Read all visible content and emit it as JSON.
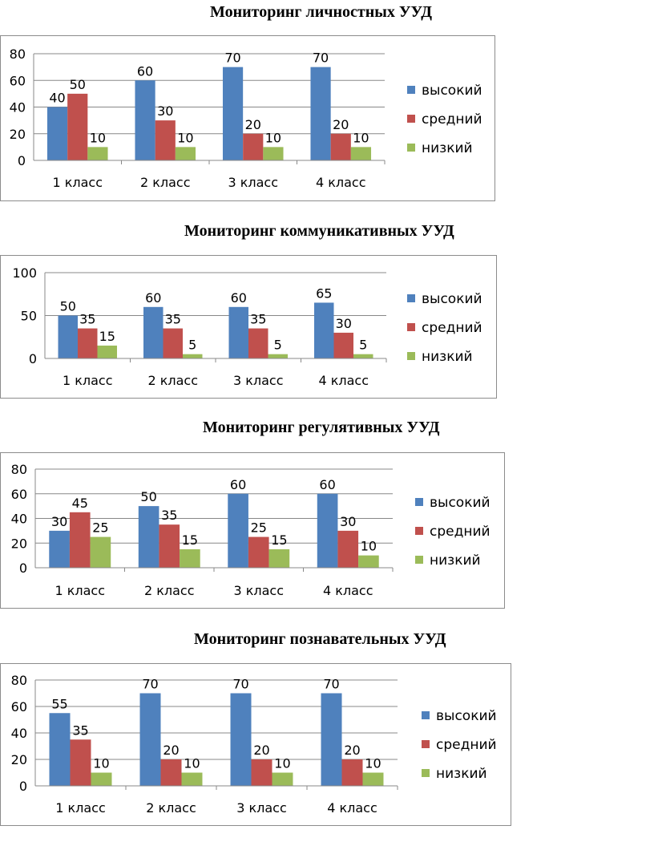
{
  "legend": {
    "high": "высокий",
    "mid": "средний",
    "low": "низкий"
  },
  "colors": {
    "high": "#4f81bd",
    "mid": "#c0504d",
    "low": "#9bbb59",
    "grid": "#888888"
  },
  "chart_data": [
    {
      "type": "bar",
      "title": "Мониторинг личностных УУД",
      "categories": [
        "1 класс",
        "2 класс",
        "3 класс",
        "4 класс"
      ],
      "series": [
        {
          "name": "высокий",
          "values": [
            40,
            60,
            70,
            70
          ]
        },
        {
          "name": "средний",
          "values": [
            50,
            30,
            20,
            20
          ]
        },
        {
          "name": "низкий",
          "values": [
            10,
            10,
            10,
            10
          ]
        }
      ],
      "ylim": [
        0,
        80
      ],
      "yticks": [
        0,
        20,
        40,
        60,
        80
      ],
      "grid": true,
      "legend_position": "right"
    },
    {
      "type": "bar",
      "title": "Мониторинг коммуникативных УУД",
      "categories": [
        "1 класс",
        "2 класс",
        "3 класс",
        "4 класс"
      ],
      "series": [
        {
          "name": "высокий",
          "values": [
            50,
            60,
            60,
            65
          ]
        },
        {
          "name": "средний",
          "values": [
            35,
            35,
            35,
            30
          ]
        },
        {
          "name": "низкий",
          "values": [
            15,
            5,
            5,
            5
          ]
        }
      ],
      "ylim": [
        0,
        100
      ],
      "yticks": [
        0,
        50,
        100
      ],
      "grid": true,
      "legend_position": "right"
    },
    {
      "type": "bar",
      "title": "Мониторинг регулятивных УУД",
      "categories": [
        "1 класс",
        "2 класс",
        "3 класс",
        "4 класс"
      ],
      "series": [
        {
          "name": "высокий",
          "values": [
            30,
            50,
            60,
            60
          ]
        },
        {
          "name": "средний",
          "values": [
            45,
            35,
            25,
            30
          ]
        },
        {
          "name": "низкий",
          "values": [
            25,
            15,
            15,
            10
          ]
        }
      ],
      "ylim": [
        0,
        80
      ],
      "yticks": [
        0,
        20,
        40,
        60,
        80
      ],
      "grid": true,
      "legend_position": "right"
    },
    {
      "type": "bar",
      "title": "Мониторинг познавательных УУД",
      "categories": [
        "1 класс",
        "2 класс",
        "3 класс",
        "4 класс"
      ],
      "series": [
        {
          "name": "высокий",
          "values": [
            55,
            70,
            70,
            70
          ]
        },
        {
          "name": "средний",
          "values": [
            35,
            20,
            20,
            20
          ]
        },
        {
          "name": "низкий",
          "values": [
            10,
            10,
            10,
            10
          ]
        }
      ],
      "ylim": [
        0,
        80
      ],
      "yticks": [
        0,
        20,
        40,
        60,
        80
      ],
      "grid": true,
      "legend_position": "right"
    }
  ]
}
